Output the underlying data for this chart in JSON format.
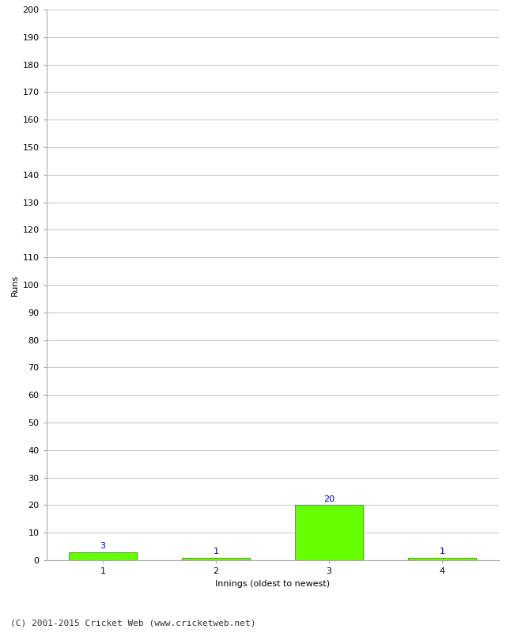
{
  "innings": [
    1,
    2,
    3,
    4
  ],
  "runs": [
    3,
    1,
    20,
    1
  ],
  "bar_color": "#66ff00",
  "bar_edge_color": "#44bb00",
  "label_color": "#0000cc",
  "xlabel": "Innings (oldest to newest)",
  "ylabel": "Runs",
  "ylim": [
    0,
    200
  ],
  "yticks": [
    0,
    10,
    20,
    30,
    40,
    50,
    60,
    70,
    80,
    90,
    100,
    110,
    120,
    130,
    140,
    150,
    160,
    170,
    180,
    190,
    200
  ],
  "footnote": "(C) 2001-2015 Cricket Web (www.cricketweb.net)",
  "background_color": "#ffffff",
  "grid_color": "#cccccc",
  "label_fontsize": 8,
  "axis_fontsize": 8,
  "ylabel_fontsize": 8,
  "footnote_fontsize": 8,
  "bar_width": 0.6
}
